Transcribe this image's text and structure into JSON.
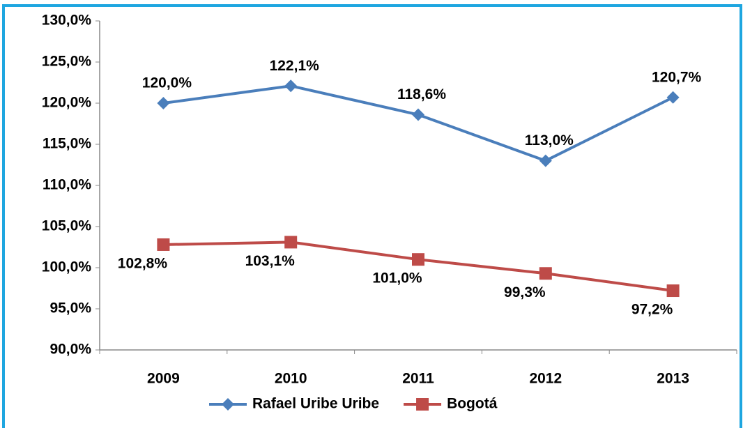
{
  "chart_data": {
    "type": "line",
    "categories": [
      "2009",
      "2010",
      "2011",
      "2012",
      "2013"
    ],
    "series": [
      {
        "name": "Rafael Uribe Uribe",
        "color": "#4a7ebb",
        "marker": "diamond",
        "values": [
          120.0,
          122.1,
          118.6,
          113.0,
          120.7
        ],
        "value_labels": [
          "120,0%",
          "122,1%",
          "118,6%",
          "113,0%",
          "120,7%"
        ]
      },
      {
        "name": "Bogotá",
        "color": "#be4b48",
        "marker": "square",
        "values": [
          102.8,
          103.1,
          101.0,
          99.3,
          97.2
        ],
        "value_labels": [
          "102,8%",
          "103,1%",
          "101,0%",
          "99,3%",
          "97,2%"
        ]
      }
    ],
    "ylim": [
      90,
      130
    ],
    "yticks": [
      {
        "value": 90,
        "label": "90,0%"
      },
      {
        "value": 95,
        "label": "95,0%"
      },
      {
        "value": 100,
        "label": "100,0%"
      },
      {
        "value": 105,
        "label": "105,0%"
      },
      {
        "value": 110,
        "label": "110,0%"
      },
      {
        "value": 115,
        "label": "115,0%"
      },
      {
        "value": 120,
        "label": "120,0%"
      },
      {
        "value": 125,
        "label": "125,0%"
      },
      {
        "value": 130,
        "label": "130,0%"
      }
    ],
    "grid": false,
    "legend": "bottom"
  }
}
